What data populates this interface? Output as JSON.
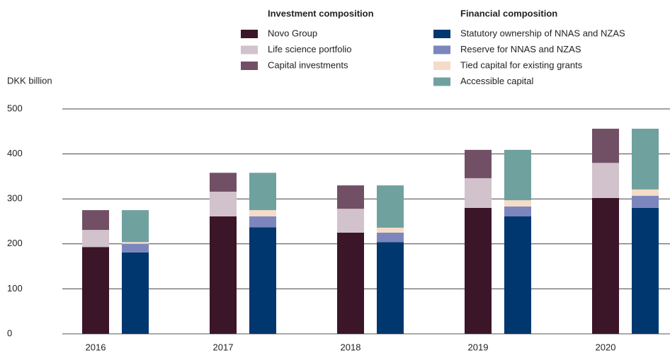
{
  "chart_data": {
    "type": "grouped_stacked_bar",
    "y_label": "DKK billion",
    "categories": [
      "2016",
      "2017",
      "2018",
      "2019",
      "2020"
    ],
    "ylim": [
      0,
      500
    ],
    "yticks": [
      0,
      100,
      200,
      300,
      400,
      500
    ],
    "grid": true,
    "stacks": [
      {
        "title": "Investment composition",
        "series": [
          {
            "name": "Novo Group",
            "color": "#3b1528",
            "values": [
              193,
              261,
              225,
              280,
              302
            ]
          },
          {
            "name": "Life science portfolio",
            "color": "#d2c2cc",
            "values": [
              38,
              55,
              53,
              66,
              78
            ]
          },
          {
            "name": "Capital investments",
            "color": "#715066",
            "values": [
              44,
              42,
              52,
              63,
              76
            ]
          }
        ]
      },
      {
        "title": "Financial composition",
        "series": [
          {
            "name": "Statutory ownership of NNAS and NZAS",
            "color": "#00376f",
            "values": [
              181,
              237,
              204,
              261,
              280
            ]
          },
          {
            "name": "Reserve for NNAS and NZAS",
            "color": "#7c86bd",
            "values": [
              19,
              24,
              21,
              22,
              27
            ]
          },
          {
            "name": "Tied capital for existing grants",
            "color": "#f5dcc8",
            "values": [
              4,
              14,
              11,
              14,
              14
            ]
          },
          {
            "name": "Accessible capital",
            "color": "#6fa19f",
            "values": [
              71,
              83,
              94,
              112,
              135
            ]
          }
        ]
      }
    ]
  }
}
